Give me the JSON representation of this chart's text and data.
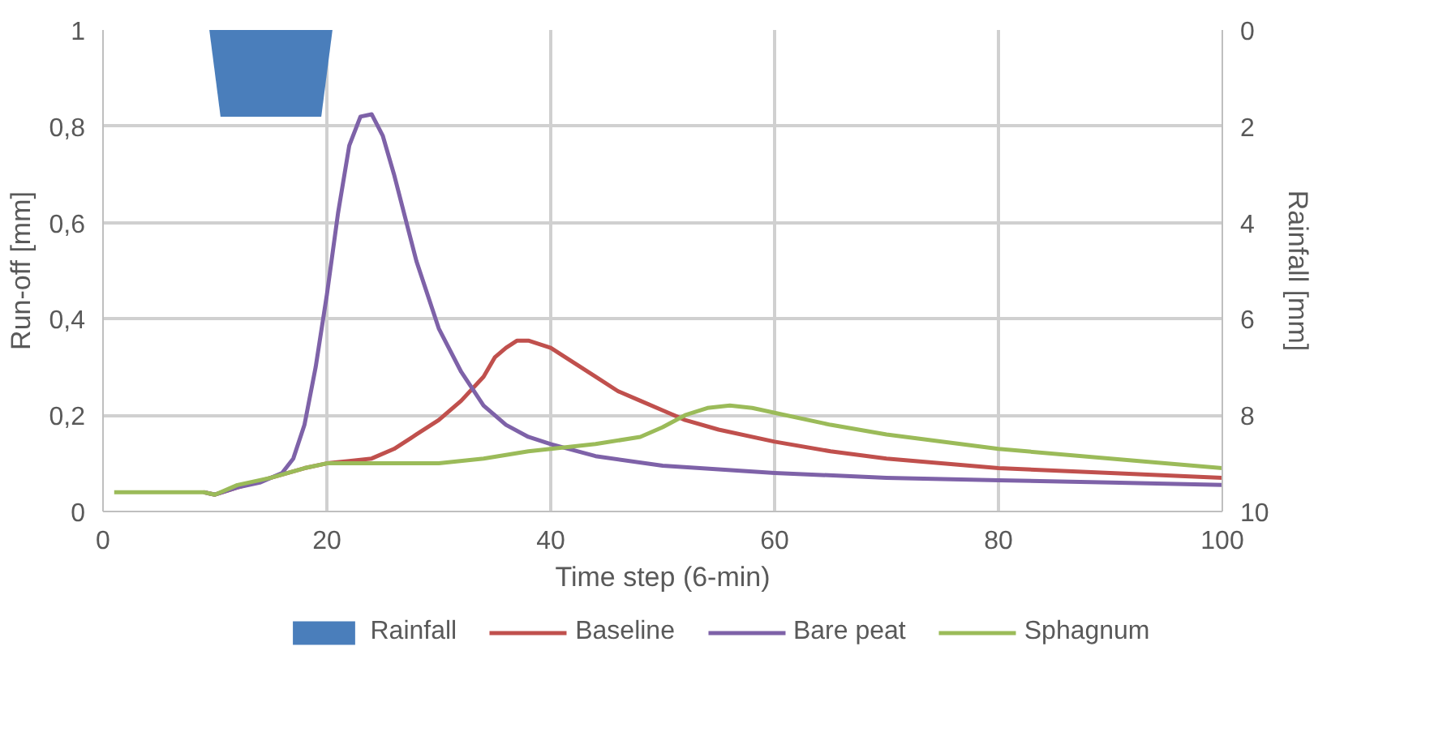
{
  "chart_data": {
    "type": "line",
    "xlabel": "Time step (6-min)",
    "ylabel": "Run-off [mm]",
    "y2label": "Rainfall [mm]",
    "xlim": [
      0,
      100
    ],
    "xticks": [
      0,
      20,
      40,
      60,
      80,
      100
    ],
    "ylim": [
      0,
      1
    ],
    "yticks": [
      0,
      {
        "value": 0.2,
        "label": "0,2"
      },
      {
        "value": 0.4,
        "label": "0,4"
      },
      {
        "value": 0.6,
        "label": "0,6"
      },
      {
        "value": 0.8,
        "label": "0,8"
      },
      1
    ],
    "y2lim": [
      10,
      0
    ],
    "y2ticks": [
      0,
      2,
      4,
      6,
      8,
      10
    ],
    "grid": true,
    "legend": "bottom",
    "marker": "none",
    "line_style": "solid",
    "series": [
      {
        "name": "Rainfall",
        "type": "area",
        "axis": "y2",
        "color": "#4a7ebb",
        "x": [
          9.5,
          10.5,
          19.5,
          20.5
        ],
        "values": [
          0,
          1.8,
          1.8,
          0
        ]
      },
      {
        "name": "Baseline",
        "color": "#c0504d",
        "x": [
          9,
          10,
          12,
          15,
          18,
          20,
          22,
          24,
          26,
          28,
          30,
          32,
          34,
          35,
          36,
          37,
          38,
          40,
          42,
          44,
          46,
          48,
          50,
          52,
          55,
          60,
          65,
          70,
          80,
          90,
          100
        ],
        "values": [
          0.04,
          0.035,
          0.05,
          0.07,
          0.09,
          0.1,
          0.105,
          0.11,
          0.13,
          0.16,
          0.19,
          0.23,
          0.28,
          0.32,
          0.34,
          0.355,
          0.355,
          0.34,
          0.31,
          0.28,
          0.25,
          0.23,
          0.21,
          0.19,
          0.17,
          0.145,
          0.125,
          0.11,
          0.09,
          0.08,
          0.07
        ]
      },
      {
        "name": "Bare peat",
        "color": "#7e62a8",
        "x": [
          9,
          10,
          12,
          14,
          16,
          17,
          18,
          19,
          20,
          21,
          22,
          23,
          24,
          25,
          26,
          28,
          30,
          32,
          34,
          36,
          38,
          40,
          44,
          50,
          60,
          70,
          80,
          90,
          100
        ],
        "values": [
          0.04,
          0.035,
          0.05,
          0.06,
          0.08,
          0.11,
          0.18,
          0.3,
          0.45,
          0.62,
          0.76,
          0.82,
          0.825,
          0.78,
          0.7,
          0.52,
          0.38,
          0.29,
          0.22,
          0.18,
          0.155,
          0.14,
          0.115,
          0.095,
          0.08,
          0.07,
          0.065,
          0.06,
          0.055
        ]
      },
      {
        "name": "Sphagnum",
        "color": "#9bbb59",
        "x": [
          1,
          5,
          9,
          10,
          12,
          15,
          18,
          20,
          25,
          30,
          34,
          38,
          40,
          44,
          48,
          50,
          52,
          54,
          56,
          58,
          60,
          65,
          70,
          80,
          90,
          100
        ],
        "values": [
          0.04,
          0.04,
          0.04,
          0.035,
          0.055,
          0.07,
          0.09,
          0.1,
          0.1,
          0.1,
          0.11,
          0.125,
          0.13,
          0.14,
          0.155,
          0.175,
          0.2,
          0.215,
          0.22,
          0.215,
          0.205,
          0.18,
          0.16,
          0.13,
          0.11,
          0.09
        ]
      }
    ]
  }
}
